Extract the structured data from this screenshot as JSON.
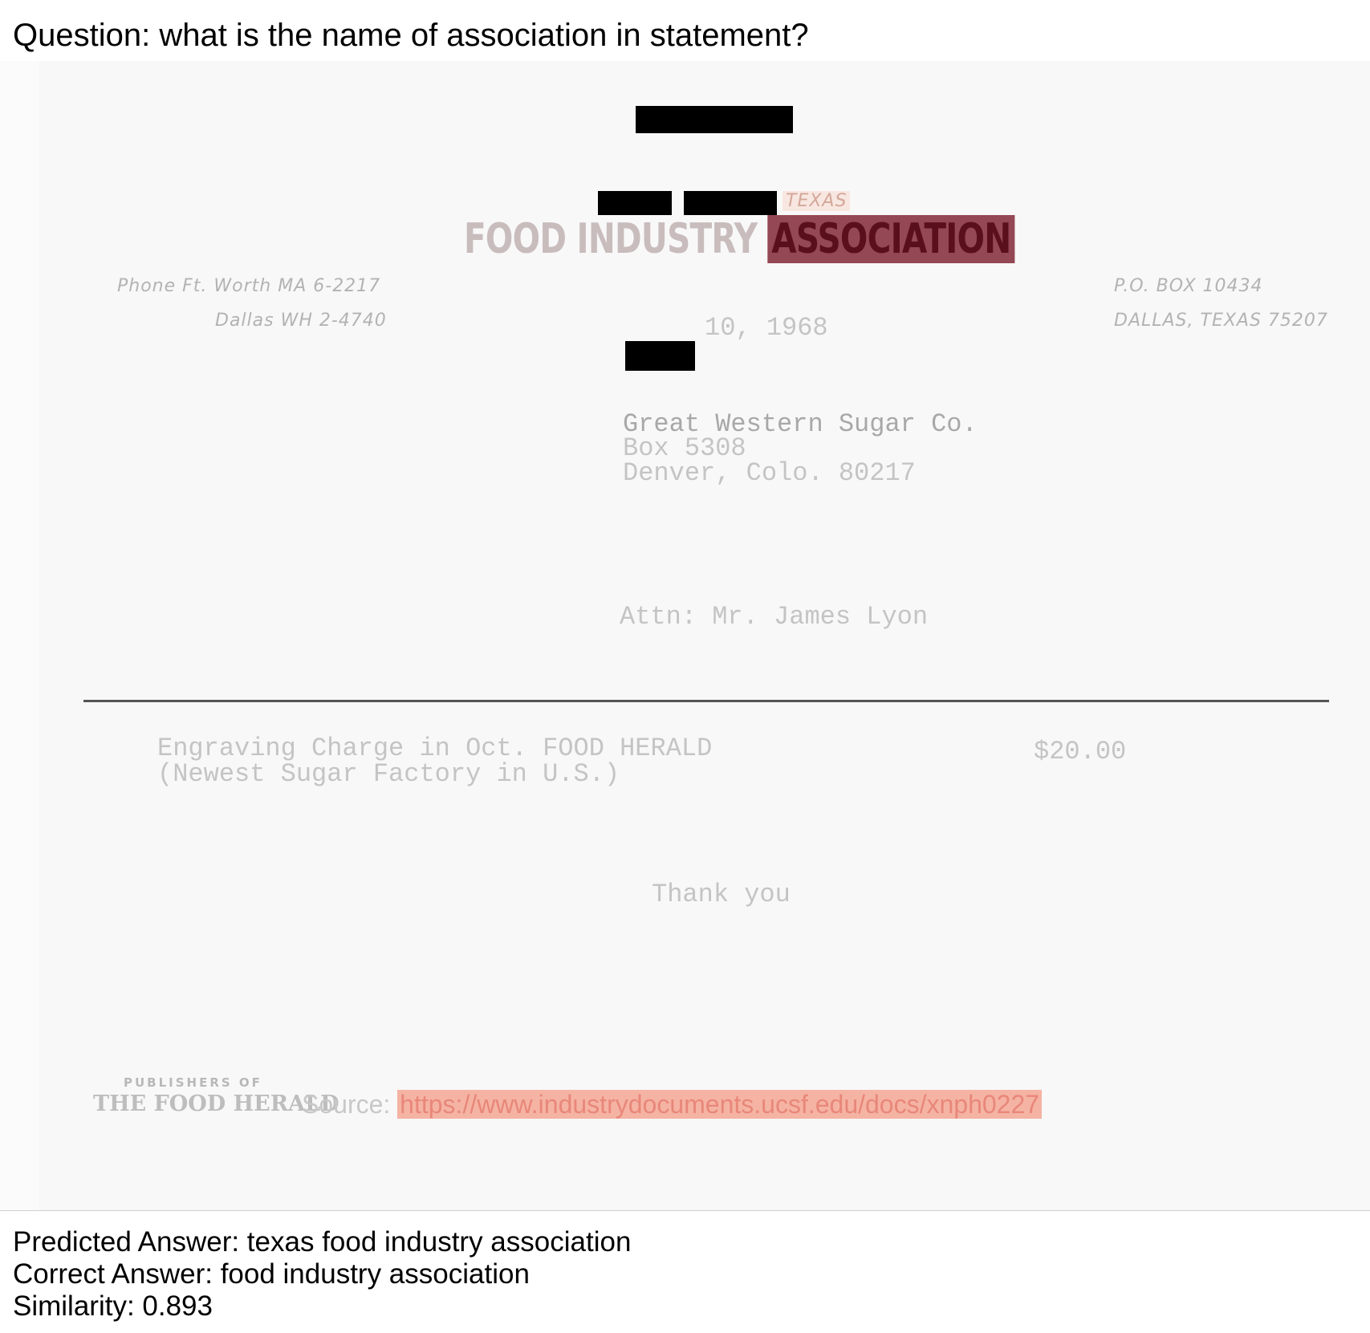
{
  "question": "Question: what is the name of association in statement?",
  "letterhead": {
    "state": "TEXAS",
    "title_part1": "FOOD INDUSTRY",
    "title_part2": "ASSOCIATION",
    "phone1": "Phone Ft. Worth MA 6-2217",
    "phone2": "Dallas WH 2-4740",
    "address1": "P.O. BOX 10434",
    "address2": "DALLAS, TEXAS 75207"
  },
  "date_text": "10, 1968",
  "recipient": {
    "line1": "Great Western Sugar Co.",
    "line2": "Box 5308",
    "line3": "Denver, Colo.  80217",
    "attn": "Attn:  Mr. James Lyon"
  },
  "charge": {
    "line1": "Engraving Charge in Oct. FOOD HERALD",
    "line2": "(Newest Sugar Factory in U.S.)",
    "amount": "$20.00"
  },
  "closing": "Thank you",
  "footer": {
    "publishers": "PUBLISHERS OF",
    "herald": "THE FOOD HERALD",
    "source_label": "Source: ",
    "source_url": "https://www.industrydocuments.ucsf.edu/docs/xnph0227"
  },
  "results": {
    "predicted": "Predicted Answer: texas food industry association",
    "correct": "Correct Answer: food industry association",
    "similarity": "Similarity: 0.893"
  }
}
